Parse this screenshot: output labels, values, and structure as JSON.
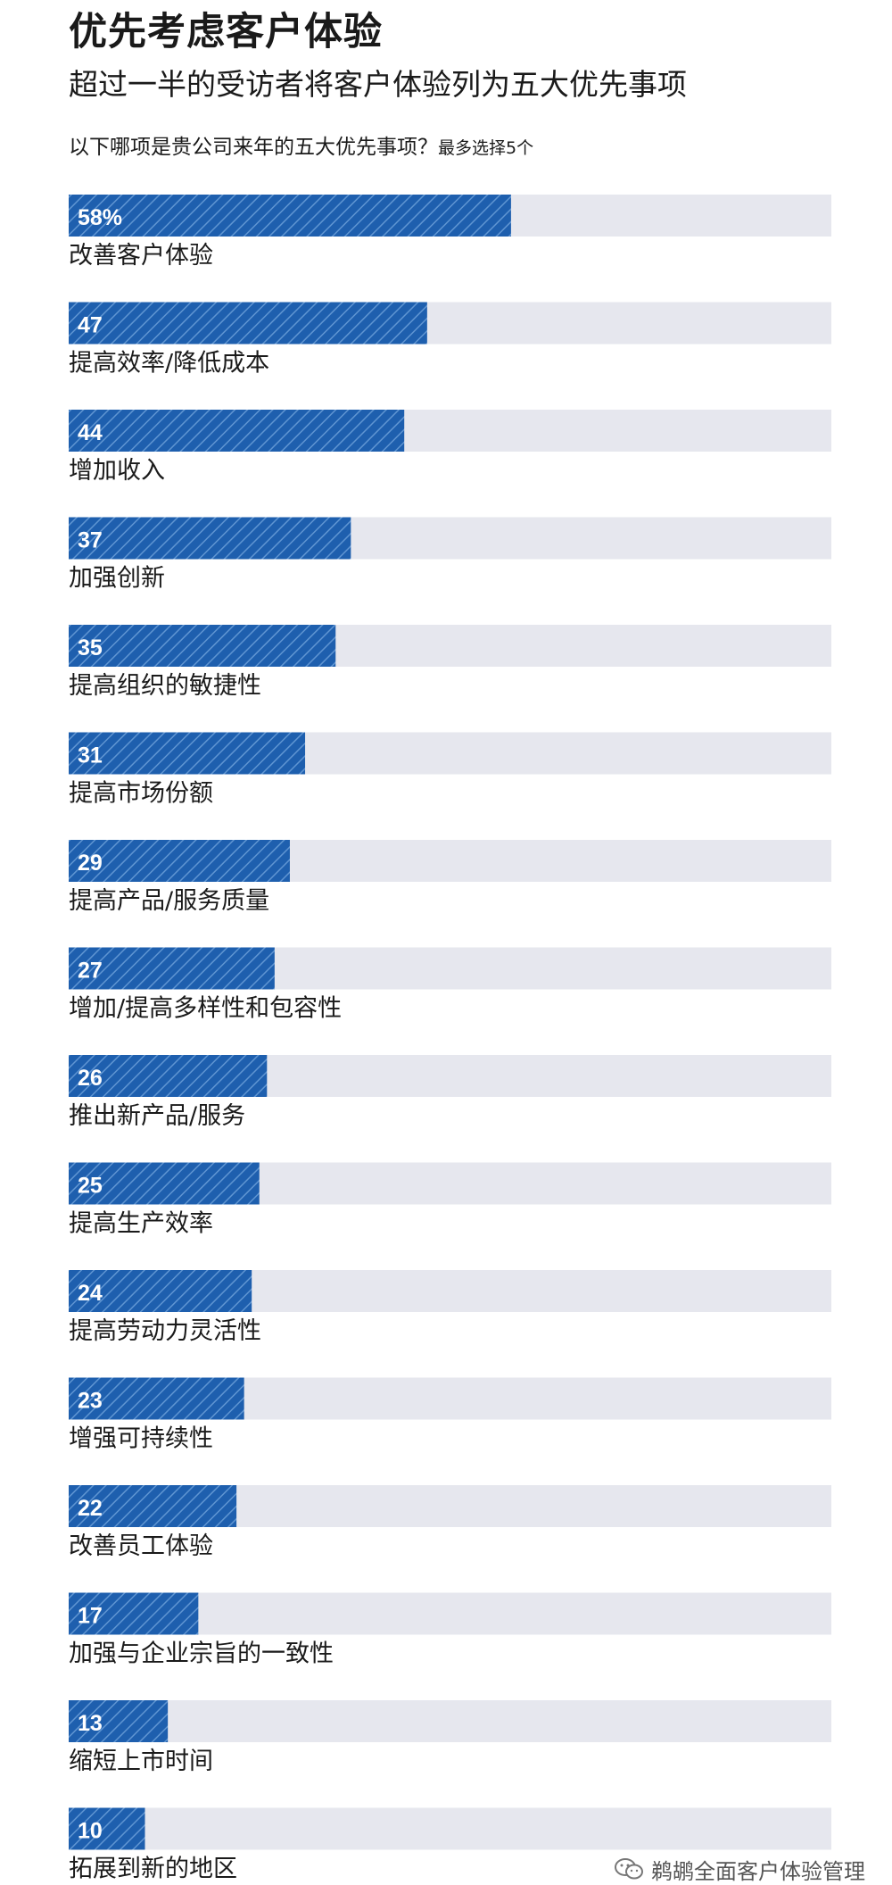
{
  "header": {
    "title": "优先考虑客户体验",
    "subtitle": "超过一半的受访者将客户体验列为五大优先事项",
    "question": "以下哪项是贵公司来年的五大优先事项？",
    "question_note": "最多选择5个"
  },
  "watermark": {
    "text": "鹈鹕全面客户体验管理",
    "icon": "wechat-icon"
  },
  "colors": {
    "bar": "#1e5fae",
    "bar_hatch": "#5f95d2",
    "track": "#e6e7ee",
    "value_text": "#ffffff",
    "label_text": "#1a1a1a"
  },
  "chart_data": {
    "type": "bar",
    "orientation": "horizontal",
    "unit": "%",
    "xlim": [
      0,
      100
    ],
    "grid": false,
    "legend": "none",
    "categories": [
      "改善客户体验",
      "提高效率/降低成本",
      "增加收入",
      "加强创新",
      "提高组织的敏捷性",
      "提高市场份额",
      "提高产品/服务质量",
      "增加/提高多样性和包容性",
      "推出新产品/服务",
      "提高生产效率",
      "提高劳动力灵活性",
      "增强可持续性",
      "改善员工体验",
      "加强与企业宗旨的一致性",
      "缩短上市时间",
      "拓展到新的地区"
    ],
    "values": [
      58,
      47,
      44,
      37,
      35,
      31,
      29,
      27,
      26,
      25,
      24,
      23,
      22,
      17,
      13,
      10
    ],
    "value_labels": [
      "58%",
      "47",
      "44",
      "37",
      "35",
      "31",
      "29",
      "27",
      "26",
      "25",
      "24",
      "23",
      "22",
      "17",
      "13",
      "10"
    ]
  }
}
